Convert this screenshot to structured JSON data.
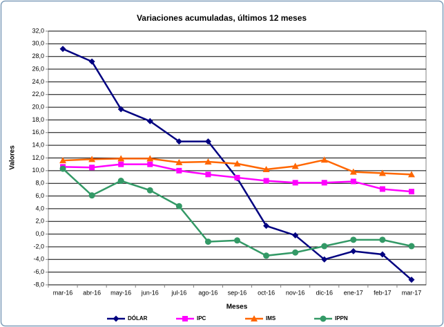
{
  "chart_data": {
    "type": "line",
    "title": "Variaciones acumuladas, últimos 12 meses",
    "x_label": "Meses",
    "y_label": "Valores",
    "categories": [
      "mar-16",
      "abr-16",
      "may-16",
      "jun-16",
      "jul-16",
      "ago-16",
      "sep-16",
      "oct-16",
      "nov-16",
      "dic-16",
      "ene-17",
      "feb-17",
      "mar-17"
    ],
    "series": [
      {
        "name": "DÓLAR",
        "color": "#000080",
        "marker": "diamond",
        "values": [
          29.2,
          27.2,
          19.7,
          17.8,
          14.6,
          14.6,
          8.8,
          1.3,
          -0.2,
          -4.0,
          -2.7,
          -3.2,
          -7.2
        ]
      },
      {
        "name": "IPC",
        "color": "#ff00ff",
        "marker": "square",
        "values": [
          10.6,
          10.5,
          11.0,
          11.0,
          10.0,
          9.4,
          8.9,
          8.4,
          8.1,
          8.1,
          8.3,
          7.1,
          6.7
        ]
      },
      {
        "name": "IMS",
        "color": "#ff6600",
        "marker": "triangle",
        "values": [
          11.6,
          11.8,
          11.9,
          11.9,
          11.3,
          11.4,
          11.1,
          10.2,
          10.7,
          11.7,
          9.8,
          9.6,
          9.4
        ]
      },
      {
        "name": "IPPN",
        "color": "#339966",
        "marker": "circle",
        "values": [
          10.3,
          6.1,
          8.4,
          6.9,
          4.4,
          -1.2,
          -1.0,
          -3.4,
          -2.9,
          -1.9,
          -0.9,
          -0.9,
          -1.9
        ]
      }
    ],
    "ylim": [
      -8,
      32
    ],
    "yticks": [
      {
        "value": -8,
        "label": "-8,0"
      },
      {
        "value": -6,
        "label": "-6,0"
      },
      {
        "value": -4,
        "label": "-4,0"
      },
      {
        "value": -2,
        "label": "-2,0"
      },
      {
        "value": 0,
        "label": "0,0"
      },
      {
        "value": 2,
        "label": "2,0"
      },
      {
        "value": 4,
        "label": "4,0"
      },
      {
        "value": 6,
        "label": "6,0"
      },
      {
        "value": 8,
        "label": "8,0"
      },
      {
        "value": 10,
        "label": "10,0"
      },
      {
        "value": 12,
        "label": "12,0"
      },
      {
        "value": 14,
        "label": "14,0"
      },
      {
        "value": 16,
        "label": "16,0"
      },
      {
        "value": 18,
        "label": "18,0"
      },
      {
        "value": 20,
        "label": "20,0"
      },
      {
        "value": 22,
        "label": "22,0"
      },
      {
        "value": 24,
        "label": "24,0"
      },
      {
        "value": 26,
        "label": "26,0"
      },
      {
        "value": 28,
        "label": "28,0"
      },
      {
        "value": 30,
        "label": "30,0"
      },
      {
        "value": 32,
        "label": "32,0"
      }
    ],
    "grid": true,
    "legend": "bottom"
  }
}
